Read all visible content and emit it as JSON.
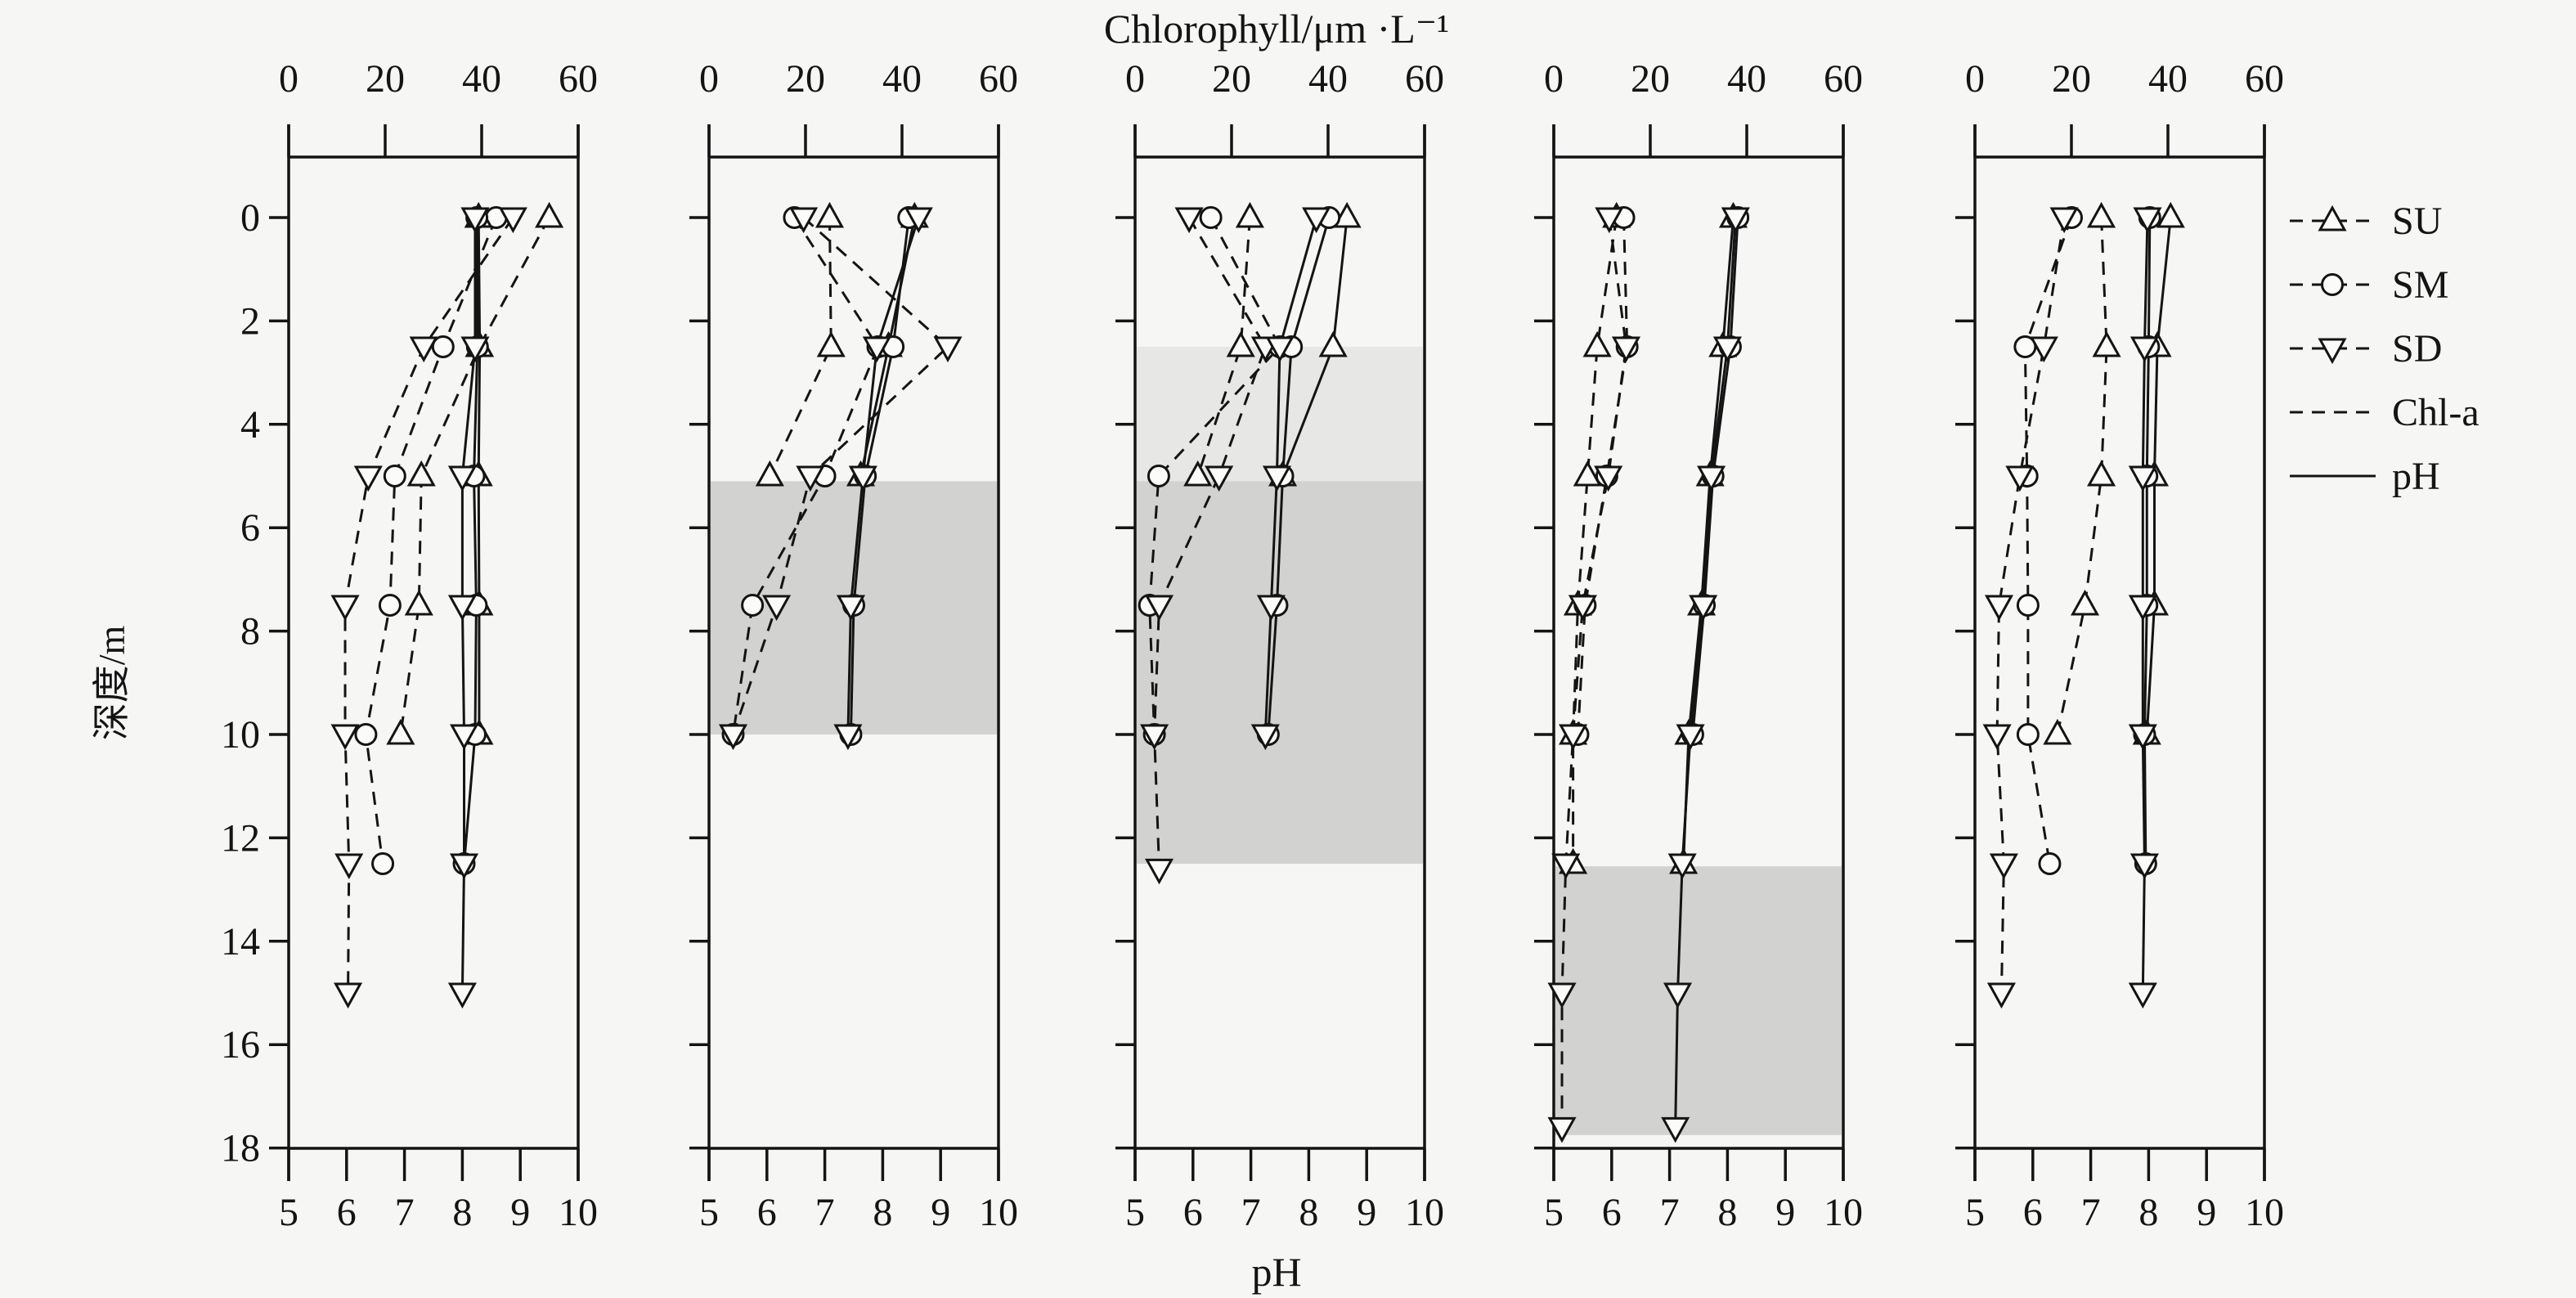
{
  "figure": {
    "background": "#f6f6f5",
    "ink": "#141414",
    "marker_fill": "#fbfbfa"
  },
  "chart_data": {
    "type": "line",
    "title": "Chlorophyll/μm ·L⁻¹",
    "xlabel_bottom": "pH",
    "ylabel": "深度/m",
    "top_axis": {
      "label": "Chlorophyll/μm ·L⁻¹",
      "min": 0,
      "max": 60,
      "ticks": [
        0,
        20,
        40,
        60
      ]
    },
    "bottom_axis": {
      "label": "pH",
      "min": 5,
      "max": 10,
      "ticks": [
        5,
        6,
        7,
        8,
        9,
        10
      ]
    },
    "depth_axis": {
      "label": "深度/m",
      "min": 0,
      "max": 18,
      "ticks": [
        0,
        2,
        4,
        6,
        8,
        10,
        12,
        14,
        16,
        18
      ]
    },
    "grid": false,
    "legend_position": "right",
    "legend": {
      "entries": [
        {
          "label": "SU",
          "marker": "triangle-up",
          "line": "dashed"
        },
        {
          "label": "SM",
          "marker": "circle",
          "line": "dashed"
        },
        {
          "label": "SD",
          "marker": "triangle-down",
          "line": "dashed"
        },
        {
          "label": "Chl-a",
          "marker": null,
          "line": "dashed"
        },
        {
          "label": "pH",
          "marker": null,
          "line": "solid"
        }
      ]
    },
    "stations": [
      {
        "id": "SU",
        "marker": "triangle-up"
      },
      {
        "id": "SM",
        "marker": "circle"
      },
      {
        "id": "SD",
        "marker": "triangle-down"
      }
    ],
    "variables": [
      {
        "id": "Chl-a",
        "axis": "top",
        "line": "dashed"
      },
      {
        "id": "pH",
        "axis": "bottom",
        "line": "solid"
      }
    ],
    "panels": [
      {
        "name": "panel-1",
        "bands": [],
        "series": [
          {
            "station": "SU",
            "variable": "Chl-a",
            "points": [
              [
                0,
                54
              ],
              [
                2.5,
                39.5
              ],
              [
                5,
                27.5
              ],
              [
                7.5,
                27
              ],
              [
                10,
                23.2
              ]
            ]
          },
          {
            "station": "SM",
            "variable": "Chl-a",
            "points": [
              [
                0,
                43
              ],
              [
                2.5,
                32
              ],
              [
                5,
                22
              ],
              [
                7.5,
                21
              ],
              [
                10,
                16
              ],
              [
                12.5,
                19.5
              ]
            ]
          },
          {
            "station": "SD",
            "variable": "Chl-a",
            "points": [
              [
                0,
                46.5
              ],
              [
                2.5,
                28
              ],
              [
                5,
                16.5
              ],
              [
                7.5,
                11.7
              ],
              [
                10,
                11.7
              ],
              [
                12.5,
                12.5
              ],
              [
                15,
                12.3
              ]
            ]
          },
          {
            "station": "SU",
            "variable": "pH",
            "points": [
              [
                0,
                8.28
              ],
              [
                2.5,
                8.3
              ],
              [
                5,
                8.28
              ],
              [
                7.5,
                8.29
              ],
              [
                10,
                8.29
              ]
            ]
          },
          {
            "station": "SM",
            "variable": "pH",
            "points": [
              [
                0,
                8.25
              ],
              [
                2.5,
                8.26
              ],
              [
                5,
                8.2
              ],
              [
                7.5,
                8.24
              ],
              [
                10,
                8.22
              ],
              [
                12.5,
                8.03
              ]
            ]
          },
          {
            "station": "SD",
            "variable": "pH",
            "points": [
              [
                0,
                8.22
              ],
              [
                2.5,
                8.22
              ],
              [
                5,
                8.0
              ],
              [
                7.5,
                8.0
              ],
              [
                10,
                8.03
              ],
              [
                12.5,
                8.03
              ],
              [
                15,
                8.0
              ]
            ]
          }
        ]
      },
      {
        "name": "panel-2",
        "bands": [
          {
            "from": 5.1,
            "to": 10,
            "color": "#d2d2d1"
          }
        ],
        "series": [
          {
            "station": "SU",
            "variable": "Chl-a",
            "points": [
              [
                0,
                25
              ],
              [
                2.5,
                25.3
              ],
              [
                5,
                12.6
              ]
            ]
          },
          {
            "station": "SM",
            "variable": "Chl-a",
            "points": [
              [
                0,
                17.7
              ],
              [
                2.5,
                35
              ],
              [
                5,
                24
              ],
              [
                7.5,
                9
              ],
              [
                10,
                5
              ]
            ]
          },
          {
            "station": "SD",
            "variable": "Chl-a",
            "points": [
              [
                0,
                19.6
              ],
              [
                2.5,
                49.5
              ],
              [
                5,
                21
              ],
              [
                7.5,
                14
              ],
              [
                10,
                5
              ]
            ]
          },
          {
            "station": "SU",
            "variable": "pH",
            "points": [
              [
                0,
                8.55
              ],
              [
                2.5,
                8.1
              ],
              [
                5,
                7.62
              ]
            ]
          },
          {
            "station": "SM",
            "variable": "pH",
            "points": [
              [
                0,
                8.45
              ],
              [
                2.5,
                8.18
              ],
              [
                5,
                7.7
              ],
              [
                7.5,
                7.5
              ],
              [
                10,
                7.45
              ]
            ]
          },
          {
            "station": "SD",
            "variable": "pH",
            "points": [
              [
                0,
                8.62
              ],
              [
                2.5,
                7.9
              ],
              [
                5,
                7.66
              ],
              [
                7.5,
                7.45
              ],
              [
                10,
                7.4
              ]
            ]
          }
        ]
      },
      {
        "name": "panel-3",
        "bands": [
          {
            "from": 2.5,
            "to": 5.1,
            "color": "#e7e7e6"
          },
          {
            "from": 5.1,
            "to": 12.5,
            "color": "#d2d2d1"
          }
        ],
        "series": [
          {
            "station": "SU",
            "variable": "Chl-a",
            "points": [
              [
                0,
                23.8
              ],
              [
                2.5,
                21.9
              ],
              [
                5,
                13
              ]
            ]
          },
          {
            "station": "SM",
            "variable": "Chl-a",
            "points": [
              [
                0,
                15.7
              ],
              [
                2.5,
                30
              ],
              [
                5,
                4.9
              ],
              [
                7.5,
                3
              ],
              [
                10,
                4
              ]
            ]
          },
          {
            "station": "SD",
            "variable": "Chl-a",
            "points": [
              [
                0,
                11.2
              ],
              [
                2.5,
                27
              ],
              [
                5,
                17.4
              ],
              [
                7.5,
                5
              ],
              [
                10,
                4
              ],
              [
                12.6,
                5
              ]
            ]
          },
          {
            "station": "SU",
            "variable": "pH",
            "points": [
              [
                0,
                8.66
              ],
              [
                2.5,
                8.42
              ],
              [
                5,
                7.55
              ]
            ]
          },
          {
            "station": "SM",
            "variable": "pH",
            "points": [
              [
                0,
                8.35
              ],
              [
                2.5,
                7.7
              ],
              [
                5,
                7.55
              ],
              [
                7.5,
                7.45
              ],
              [
                10,
                7.3
              ]
            ]
          },
          {
            "station": "SD",
            "variable": "pH",
            "points": [
              [
                0,
                8.13
              ],
              [
                2.5,
                7.5
              ],
              [
                5,
                7.45
              ],
              [
                7.5,
                7.35
              ],
              [
                10,
                7.25
              ]
            ]
          }
        ]
      },
      {
        "name": "panel-4",
        "bands": [
          {
            "from": 12.55,
            "to": 17.75,
            "color": "#d2d2d1"
          }
        ],
        "series": [
          {
            "station": "SU",
            "variable": "Chl-a",
            "points": [
              [
                0,
                13
              ],
              [
                2.5,
                9
              ],
              [
                5,
                7
              ],
              [
                7.5,
                5
              ],
              [
                10,
                4
              ],
              [
                12.5,
                4
              ]
            ]
          },
          {
            "station": "SM",
            "variable": "Chl-a",
            "points": [
              [
                0,
                14.5
              ],
              [
                2.5,
                15.2
              ],
              [
                5,
                11
              ],
              [
                7.5,
                6.5
              ],
              [
                10,
                5
              ]
            ]
          },
          {
            "station": "SD",
            "variable": "Chl-a",
            "points": [
              [
                0,
                11.5
              ],
              [
                2.5,
                15
              ],
              [
                5,
                11.3
              ],
              [
                7.5,
                6
              ],
              [
                10,
                4
              ],
              [
                12.5,
                2.5
              ],
              [
                15,
                1.7
              ],
              [
                17.6,
                1.7
              ]
            ]
          },
          {
            "station": "SU",
            "variable": "pH",
            "points": [
              [
                0,
                8.1
              ],
              [
                2.5,
                7.92
              ],
              [
                5,
                7.7
              ],
              [
                7.5,
                7.55
              ],
              [
                10,
                7.33
              ],
              [
                12.5,
                7.24
              ]
            ]
          },
          {
            "station": "SM",
            "variable": "pH",
            "points": [
              [
                0,
                8.18
              ],
              [
                2.5,
                8.05
              ],
              [
                5,
                7.75
              ],
              [
                7.5,
                7.6
              ],
              [
                10,
                7.4
              ]
            ]
          },
          {
            "station": "SD",
            "variable": "pH",
            "points": [
              [
                0,
                8.14
              ],
              [
                2.5,
                8.0
              ],
              [
                5,
                7.72
              ],
              [
                7.5,
                7.58
              ],
              [
                10,
                7.36
              ],
              [
                12.5,
                7.22
              ],
              [
                15,
                7.14
              ],
              [
                17.6,
                7.1
              ]
            ]
          }
        ]
      },
      {
        "name": "panel-5",
        "bands": [],
        "series": [
          {
            "station": "SU",
            "variable": "Chl-a",
            "points": [
              [
                0,
                26.2
              ],
              [
                2.5,
                27.3
              ],
              [
                5,
                26.2
              ],
              [
                7.5,
                22.8
              ],
              [
                10,
                17.1
              ]
            ]
          },
          {
            "station": "SM",
            "variable": "Chl-a",
            "points": [
              [
                0,
                20
              ],
              [
                2.5,
                10.4
              ],
              [
                5,
                10.8
              ],
              [
                7.5,
                11
              ],
              [
                10,
                11
              ],
              [
                12.5,
                15.5
              ]
            ]
          },
          {
            "station": "SD",
            "variable": "Chl-a",
            "points": [
              [
                0,
                18.5
              ],
              [
                2.5,
                14.3
              ],
              [
                5,
                9.3
              ],
              [
                7.5,
                5
              ],
              [
                10,
                4.6
              ],
              [
                12.5,
                6
              ],
              [
                15,
                5.5
              ]
            ]
          },
          {
            "station": "SU",
            "variable": "pH",
            "points": [
              [
                0,
                8.38
              ],
              [
                2.5,
                8.15
              ],
              [
                5,
                8.1
              ],
              [
                7.5,
                8.1
              ],
              [
                10,
                7.97
              ]
            ]
          },
          {
            "station": "SM",
            "variable": "pH",
            "points": [
              [
                0,
                8.02
              ],
              [
                2.5,
                8.0
              ],
              [
                5,
                7.97
              ],
              [
                7.5,
                7.97
              ],
              [
                10,
                7.93
              ],
              [
                12.5,
                7.95
              ]
            ]
          },
          {
            "station": "SD",
            "variable": "pH",
            "points": [
              [
                0,
                7.98
              ],
              [
                2.5,
                7.93
              ],
              [
                5,
                7.9
              ],
              [
                7.5,
                7.9
              ],
              [
                10,
                7.9
              ],
              [
                12.5,
                7.93
              ],
              [
                15,
                7.9
              ]
            ]
          }
        ]
      }
    ]
  }
}
